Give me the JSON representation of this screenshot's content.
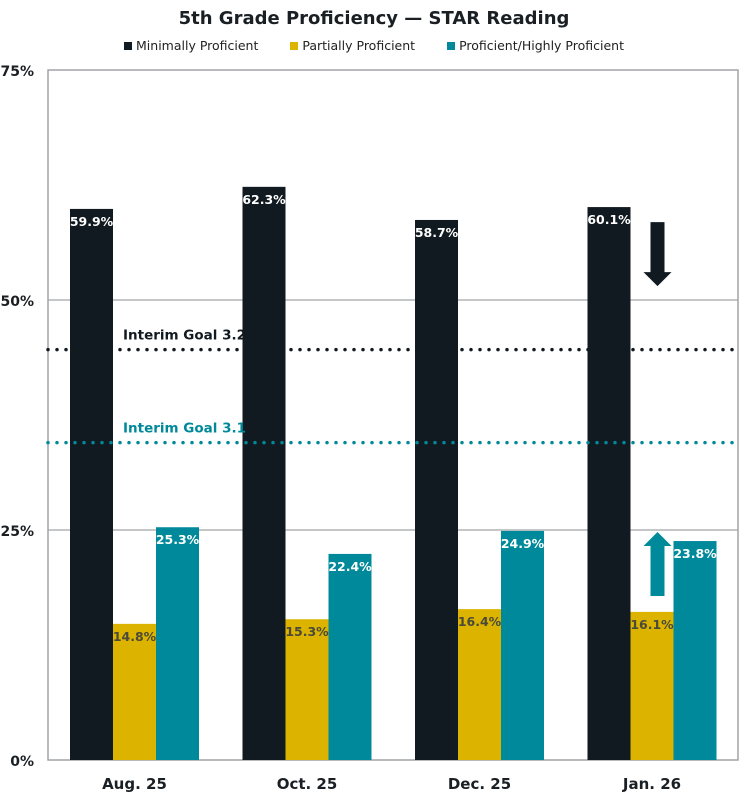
{
  "chart_data": {
    "type": "bar",
    "title": "5th Grade Proficiency — STAR Reading",
    "categories": [
      "Aug. 25",
      "Oct. 25",
      "Dec. 25",
      "Jan. 26"
    ],
    "series": [
      {
        "name": "Minimally Proficient",
        "color": "#121a21",
        "values": [
          59.9,
          62.3,
          58.7,
          60.1
        ],
        "labels": [
          "59.9%",
          "62.3%",
          "58.7%",
          "60.1%"
        ],
        "label_color": "#ffffff"
      },
      {
        "name": "Partially Proficient",
        "color": "#dcb400",
        "values": [
          14.8,
          15.3,
          16.4,
          16.1
        ],
        "labels": [
          "14.8%",
          "15.3%",
          "16.4%",
          "16.1%"
        ],
        "label_color": "#4a4a3a"
      },
      {
        "name": "Proficient/Highly Proficient",
        "color": "#00899a",
        "values": [
          25.3,
          22.4,
          24.9,
          23.8
        ],
        "labels": [
          "25.3%",
          "22.4%",
          "24.9%",
          "23.8%"
        ],
        "label_color": "#ffffff"
      }
    ],
    "ylim": [
      0,
      75
    ],
    "yticks": [
      0,
      25,
      50,
      75
    ],
    "ytick_labels": [
      "0%",
      "25%",
      "50%",
      "75%"
    ],
    "grid": true,
    "legend_position": "top",
    "reference_lines": [
      {
        "label": "Interim Goal 3.2",
        "value": 44.6,
        "color": "#121a21",
        "style": "dotted"
      },
      {
        "label": "Interim Goal 3.1",
        "value": 34.5,
        "color": "#00899a",
        "style": "dotted"
      }
    ],
    "annotations": [
      {
        "type": "arrow-down",
        "category": "Jan. 26",
        "series": "Minimally Proficient",
        "color": "#121a21"
      },
      {
        "type": "arrow-up",
        "category": "Jan. 26",
        "series": "Proficient/Highly Proficient",
        "color": "#00899a"
      }
    ]
  }
}
